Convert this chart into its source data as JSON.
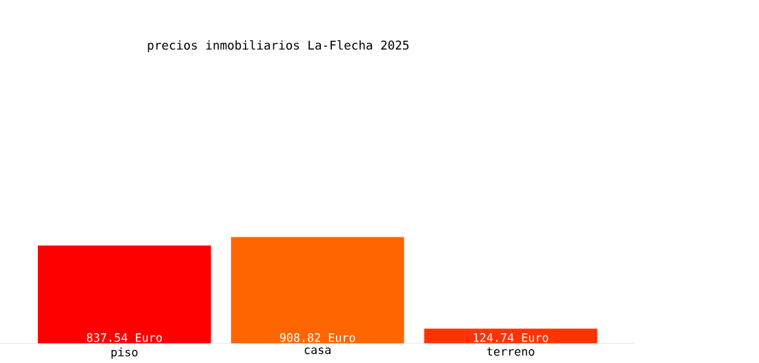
{
  "chart_data": {
    "type": "bar",
    "title": "precios inmobiliarios La-Flecha 2025",
    "categories": [
      "piso",
      "casa",
      "terreno"
    ],
    "values": [
      837.54,
      908.82,
      124.74
    ],
    "colors": [
      "#ff0000",
      "#ff6600",
      "#ff3300"
    ],
    "value_labels": [
      "837.54 Euro",
      "908.82 Euro",
      "124.74 Euro"
    ]
  }
}
